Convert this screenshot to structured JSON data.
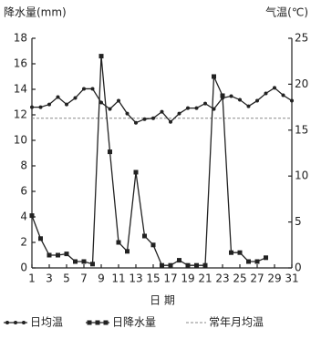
{
  "chart_data": {
    "type": "line",
    "y_label": "降水量(mm)",
    "y2_label": "气温(℃)",
    "x_label": "日 期",
    "x": [
      1,
      2,
      3,
      4,
      5,
      6,
      7,
      8,
      9,
      10,
      11,
      12,
      13,
      14,
      15,
      16,
      17,
      18,
      19,
      20,
      21,
      22,
      23,
      24,
      25,
      26,
      27,
      28,
      29,
      30,
      31
    ],
    "xlim": [
      1,
      31
    ],
    "xticks": [
      1,
      3,
      5,
      7,
      9,
      11,
      13,
      15,
      17,
      19,
      21,
      23,
      25,
      27,
      29,
      31
    ],
    "ylim": [
      0,
      18
    ],
    "yticks": [
      0,
      2,
      4,
      6,
      8,
      10,
      12,
      14,
      16,
      18
    ],
    "y2lim": [
      0,
      25
    ],
    "y2ticks": [
      0,
      5,
      10,
      15,
      20,
      25
    ],
    "series": [
      {
        "name": "日均温",
        "color": "#222222",
        "axis": "y2",
        "marker": "circle",
        "values": [
          17.5,
          17.5,
          17.8,
          18.6,
          17.8,
          18.5,
          19.5,
          19.5,
          18.0,
          17.3,
          18.2,
          16.8,
          15.8,
          16.2,
          16.3,
          17.0,
          15.9,
          16.8,
          17.4,
          17.4,
          17.9,
          17.3,
          18.5,
          18.7,
          18.3,
          17.6,
          18.2,
          19.0,
          19.6,
          18.8,
          18.2
        ]
      },
      {
        "name": "日降水量",
        "color": "#222222",
        "axis": "y",
        "marker": "square",
        "values": [
          4.1,
          2.3,
          1.0,
          1.0,
          1.1,
          0.5,
          0.5,
          0.3,
          16.6,
          9.1,
          2.0,
          1.3,
          7.5,
          2.5,
          1.8,
          0.2,
          0.2,
          0.6,
          0.2,
          0.2,
          0.2,
          15.0,
          13.5,
          1.2,
          1.2,
          0.5,
          0.5,
          0.8,
          null,
          null,
          null
        ]
      }
    ],
    "reference_line": {
      "name": "常年月均温",
      "value": 16.3,
      "axis": "y2",
      "color": "#888888"
    }
  }
}
